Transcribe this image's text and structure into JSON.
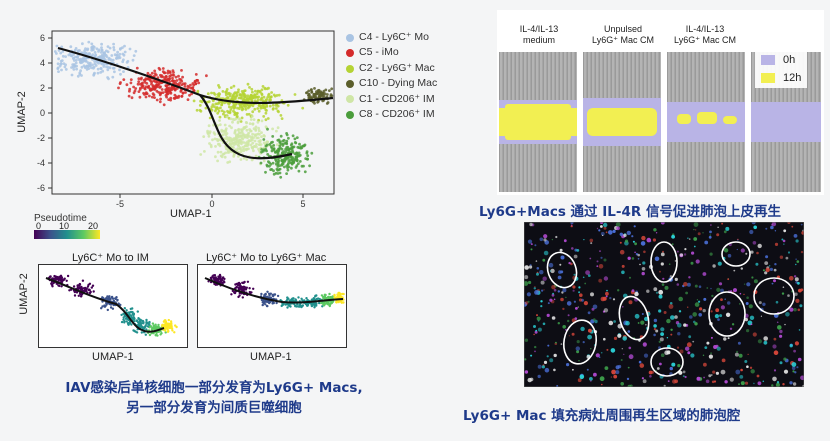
{
  "umap_main": {
    "ylabel": "UMAP-2",
    "xlabel": "UMAP-1",
    "x_ticks": [
      "-5",
      "0",
      "5"
    ],
    "y_ticks": [
      "6",
      "4",
      "2",
      "0",
      "-2",
      "-4",
      "-6"
    ],
    "legend": [
      {
        "label": "C4 - Ly6C⁺ Mo",
        "color": "#a9c4e3"
      },
      {
        "label": "C5 - iMo",
        "color": "#d42a2a"
      },
      {
        "label": "C2 - Ly6G⁺ Mac",
        "color": "#b5d334"
      },
      {
        "label": "C10 - Dying Mac",
        "color": "#5b5e2b"
      },
      {
        "label": "C1 - CD206⁺ IM",
        "color": "#cfe6a6"
      },
      {
        "label": "C8 - CD206⁺ IM",
        "color": "#4b9d3c"
      }
    ]
  },
  "pseudotime": {
    "label": "Pseudotime",
    "ticks": [
      "0",
      "10",
      "20"
    ]
  },
  "mini_plots": [
    {
      "title": "Ly6C⁺ Mo to IM",
      "xlabel": "UMAP-1"
    },
    {
      "title": "Ly6C⁺ Mo to Ly6G⁺ Mac",
      "xlabel": "UMAP-1"
    }
  ],
  "mini_ylabel": "UMAP-2",
  "caption_left": {
    "line1": "IAV感染后单核细胞一部分发育为Ly6G+ Macs,",
    "line2": "另一部分发育为间质巨噬细胞"
  },
  "scratch": {
    "panels": [
      {
        "label_line1": "IL-4/IL-13",
        "label_line2": "medium"
      },
      {
        "label_line1": "Unpulsed",
        "label_line2": "Ly6G⁺ Mac CM"
      },
      {
        "label_line1": "IL-4/IL-13",
        "label_line2": "Ly6G⁺ Mac CM"
      }
    ],
    "legend": [
      {
        "label": "0h",
        "color": "#b9b4e6"
      },
      {
        "label": "12h",
        "color": "#f2ef52"
      }
    ]
  },
  "caption_right_top": "Ly6G+Macs 通过 IL-4R 信号促进肺泡上皮再生",
  "caption_right_bottom": "Ly6G+ Mac 填充病灶周围再生区域的肺泡腔"
}
